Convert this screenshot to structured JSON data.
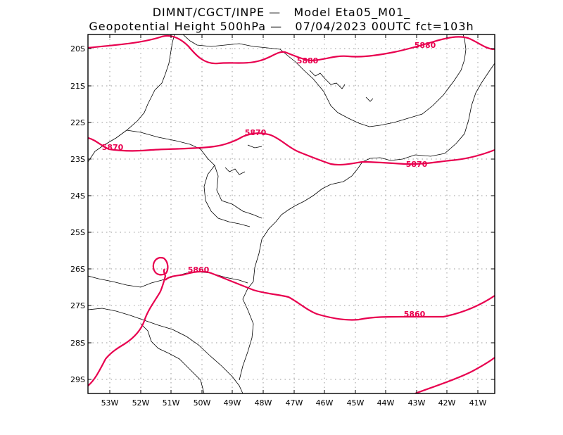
{
  "header": {
    "line1": "DIMNT/CGCT/INPE —   Model Eta05_M01_",
    "line2": "Geopotential Height 500hPa —   07/04/2023 00UTC fct=103h"
  },
  "map": {
    "lat_labels": [
      "20S",
      "21S",
      "22S",
      "23S",
      "24S",
      "25S",
      "26S",
      "27S",
      "28S",
      "29S"
    ],
    "lon_labels": [
      "53W",
      "52W",
      "51W",
      "50W",
      "49W",
      "48W",
      "47W",
      "46W",
      "45W",
      "44W",
      "43W",
      "42W",
      "41W"
    ],
    "contour_color": "#e8004f",
    "coast_color": "#000000",
    "grid_style": "dotted",
    "contour_labels": [
      "5880",
      "5880",
      "5870",
      "5870",
      "5870",
      "5860",
      "5860"
    ]
  }
}
